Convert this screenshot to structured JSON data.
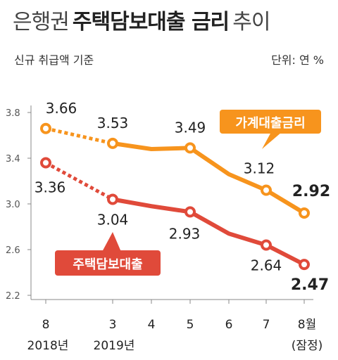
{
  "header": {
    "title_part1": "은행권",
    "title_part2": "주택담보대출 금리",
    "title_part3": "추이",
    "subtitle": "신규 취급액 기준",
    "unit": "단위: 연 %"
  },
  "chart_data": {
    "type": "line",
    "x_ticks": [
      "8",
      "3",
      "4",
      "5",
      "6",
      "7",
      "8월"
    ],
    "x_year_labels": [
      "2018년",
      "2019년",
      "(잠정)"
    ],
    "y_ticks": [
      "3.8",
      "3.4",
      "3.0",
      "2.6",
      "2.2"
    ],
    "ylim": [
      2.2,
      3.8
    ],
    "grid": false,
    "dotted_gap": "between 2018-08 and 2019-03",
    "series": [
      {
        "name": "가계대출금리",
        "color": "#f7941d",
        "x": [
          "2018-08",
          "2019-03",
          "2019-04",
          "2019-05",
          "2019-06",
          "2019-07",
          "2019-08"
        ],
        "values": [
          3.66,
          3.53,
          3.48,
          3.49,
          3.26,
          3.12,
          2.92
        ],
        "labels": [
          "3.66",
          "3.53",
          "",
          "3.49",
          "",
          "3.12",
          "2.92"
        ]
      },
      {
        "name": "주택담보대출",
        "color": "#e04a3a",
        "x": [
          "2018-08",
          "2019-03",
          "2019-04",
          "2019-05",
          "2019-06",
          "2019-07",
          "2019-08"
        ],
        "values": [
          3.36,
          3.04,
          2.98,
          2.93,
          2.74,
          2.64,
          2.47
        ],
        "labels": [
          "3.36",
          "3.04",
          "",
          "2.93",
          "",
          "2.64",
          "2.47"
        ]
      }
    ]
  }
}
